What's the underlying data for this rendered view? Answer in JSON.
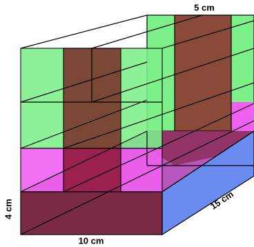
{
  "labels": {
    "top": "5 cm",
    "left": "4 cm",
    "bottom": "10 cm",
    "side": "15 cm"
  }
}
